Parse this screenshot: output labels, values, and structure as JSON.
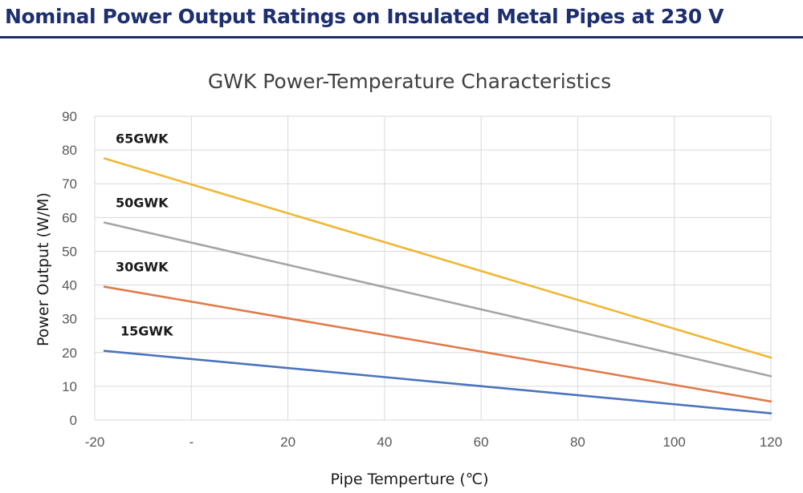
{
  "heading": "Nominal Power Output Ratings on Insulated Metal Pipes at 230 V",
  "chart_data": {
    "type": "line",
    "title": "GWK Power-Temperature Characteristics",
    "xlabel": "Pipe Temperture (℃)",
    "ylabel": "Power Output (W/M)",
    "xlim": [
      -20,
      120
    ],
    "ylim": [
      0,
      90
    ],
    "x_ticks": [
      {
        "value": -20,
        "label": "-20"
      },
      {
        "value": 0,
        "label": "-"
      },
      {
        "value": 20,
        "label": "20"
      },
      {
        "value": 40,
        "label": "40"
      },
      {
        "value": 60,
        "label": "60"
      },
      {
        "value": 80,
        "label": "80"
      },
      {
        "value": 100,
        "label": "100"
      },
      {
        "value": 120,
        "label": "120"
      }
    ],
    "y_ticks": [
      0,
      10,
      20,
      30,
      40,
      50,
      60,
      70,
      80,
      90
    ],
    "grid": true,
    "series": [
      {
        "name": "65GWK",
        "color": "#f0b733",
        "x": [
          -18,
          120
        ],
        "y": [
          77.5,
          18.5
        ]
      },
      {
        "name": "50GWK",
        "color": "#a5a5a5",
        "x": [
          -18,
          120
        ],
        "y": [
          58.5,
          13
        ]
      },
      {
        "name": "30GWK",
        "color": "#e07b4a",
        "x": [
          -18,
          120
        ],
        "y": [
          39.5,
          5.5
        ]
      },
      {
        "name": "15GWK",
        "color": "#4a74bb",
        "x": [
          -18,
          120
        ],
        "y": [
          20.5,
          2
        ]
      }
    ]
  }
}
